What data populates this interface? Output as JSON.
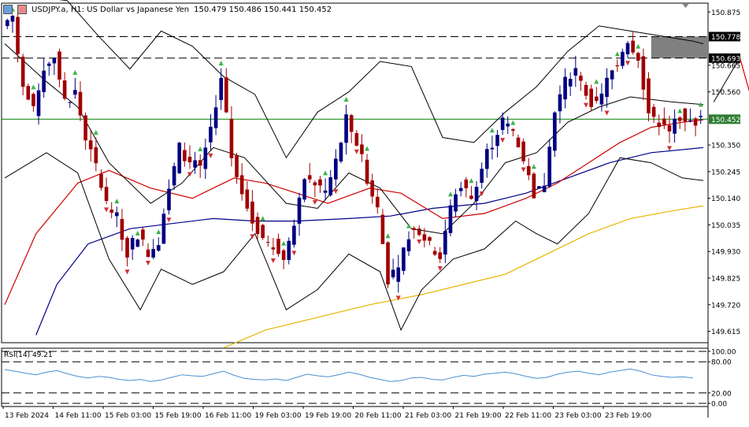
{
  "header": {
    "symbol": "USDJPY.a, H1:  US Dollar vs Japanese Yen",
    "ohlc": "150.479 150.486 150.441 150.452"
  },
  "rsi": {
    "label": "RSI(14) 49.21",
    "value": 49.21,
    "levels": [
      100,
      80,
      20,
      0
    ]
  },
  "price_axis": {
    "ticks": [
      "150.875",
      "150.665",
      "150.560",
      "150.350",
      "150.245",
      "150.140",
      "150.035",
      "149.930",
      "149.825",
      "149.720",
      "149.615"
    ],
    "tick_values": [
      150.875,
      150.665,
      150.56,
      150.35,
      150.245,
      150.14,
      150.035,
      149.93,
      149.825,
      149.72,
      149.615
    ],
    "tags": [
      {
        "label": "150.778",
        "value": 150.778,
        "color": "#000000"
      },
      {
        "label": "150.693",
        "value": 150.693,
        "color": "#000000"
      },
      {
        "label": "150.452",
        "value": 150.452,
        "color": "#2e7d32"
      }
    ]
  },
  "time_axis": [
    "13 Feb 2024",
    "14 Feb 11:00",
    "15 Feb 03:00",
    "15 Feb 19:00",
    "16 Feb 11:00",
    "19 Feb 03:00",
    "19 Feb 19:00",
    "20 Feb 11:00",
    "21 Feb 03:00",
    "21 Feb 19:00",
    "22 Feb 11:00",
    "23 Feb 03:00",
    "23 Feb 19:00"
  ],
  "colors": {
    "bull_candle": "#000080",
    "bear_candle": "#a00000",
    "bollinger": "#000000",
    "ma_fast": "#d00000",
    "ma_mid": "#00008b",
    "ma_slow": "#e8b400",
    "rsi_line": "#4a8fd0",
    "resistance_zone": "#808080",
    "current_price_line": "#008000",
    "arrow_up": "#3cb44b",
    "arrow_down": "#d03030",
    "projection_up": "#000000",
    "projection_down": "#e00000"
  },
  "chart_data": {
    "type": "candlestick",
    "title": "USDJPY.a, H1:  US Dollar vs Japanese Yen",
    "ylim": [
      149.57,
      150.91
    ],
    "y_ticks": [
      150.875,
      150.665,
      150.56,
      150.35,
      150.245,
      150.14,
      150.035,
      149.93,
      149.825,
      149.72,
      149.615
    ],
    "x_ticks": [
      "13 Feb 2024",
      "14 Feb 11:00",
      "15 Feb 03:00",
      "15 Feb 19:00",
      "16 Feb 11:00",
      "19 Feb 03:00",
      "19 Feb 19:00",
      "20 Feb 11:00",
      "21 Feb 03:00",
      "21 Feb 19:00",
      "22 Feb 11:00",
      "23 Feb 03:00",
      "23 Feb 19:00"
    ],
    "price_path": [
      [
        0,
        150.82
      ],
      [
        2,
        150.86
      ],
      [
        4,
        150.58
      ],
      [
        6,
        150.48
      ],
      [
        8,
        150.66
      ],
      [
        10,
        150.7
      ],
      [
        12,
        150.52
      ],
      [
        14,
        150.56
      ],
      [
        16,
        150.38
      ],
      [
        18,
        150.26
      ],
      [
        20,
        150.12
      ],
      [
        22,
        150.06
      ],
      [
        24,
        149.93
      ],
      [
        26,
        150.0
      ],
      [
        28,
        149.92
      ],
      [
        30,
        149.98
      ],
      [
        32,
        150.18
      ],
      [
        34,
        150.34
      ],
      [
        36,
        150.28
      ],
      [
        38,
        150.26
      ],
      [
        40,
        150.42
      ],
      [
        42,
        150.62
      ],
      [
        44,
        150.3
      ],
      [
        46,
        150.18
      ],
      [
        48,
        150.05
      ],
      [
        50,
        149.98
      ],
      [
        52,
        149.96
      ],
      [
        54,
        149.92
      ],
      [
        56,
        150.02
      ],
      [
        58,
        150.22
      ],
      [
        60,
        150.2
      ],
      [
        62,
        150.16
      ],
      [
        64,
        150.28
      ],
      [
        66,
        150.45
      ],
      [
        68,
        150.36
      ],
      [
        70,
        150.22
      ],
      [
        72,
        150.1
      ],
      [
        74,
        149.82
      ],
      [
        76,
        149.85
      ],
      [
        78,
        150.0
      ],
      [
        80,
        150.02
      ],
      [
        82,
        149.95
      ],
      [
        84,
        149.92
      ],
      [
        86,
        150.1
      ],
      [
        88,
        150.2
      ],
      [
        90,
        150.14
      ],
      [
        92,
        150.28
      ],
      [
        94,
        150.36
      ],
      [
        96,
        150.44
      ],
      [
        98,
        150.4
      ],
      [
        100,
        150.28
      ],
      [
        102,
        150.16
      ],
      [
        104,
        150.2
      ],
      [
        106,
        150.48
      ],
      [
        108,
        150.6
      ],
      [
        110,
        150.64
      ],
      [
        112,
        150.55
      ],
      [
        114,
        150.5
      ],
      [
        116,
        150.6
      ],
      [
        118,
        150.68
      ],
      [
        120,
        150.77
      ],
      [
        122,
        150.7
      ],
      [
        124,
        150.48
      ],
      [
        126,
        150.44
      ],
      [
        128,
        150.4
      ],
      [
        130,
        150.47
      ],
      [
        132,
        150.44
      ],
      [
        134,
        150.45
      ]
    ],
    "bollinger_mid": [
      [
        0,
        150.75
      ],
      [
        8,
        150.6
      ],
      [
        14,
        150.5
      ],
      [
        20,
        150.28
      ],
      [
        28,
        150.12
      ],
      [
        34,
        150.2
      ],
      [
        40,
        150.34
      ],
      [
        46,
        150.3
      ],
      [
        54,
        150.12
      ],
      [
        60,
        150.1
      ],
      [
        66,
        150.24
      ],
      [
        72,
        150.18
      ],
      [
        78,
        150.02
      ],
      [
        84,
        150.0
      ],
      [
        90,
        150.12
      ],
      [
        96,
        150.28
      ],
      [
        102,
        150.32
      ],
      [
        108,
        150.44
      ],
      [
        114,
        150.5
      ],
      [
        120,
        150.54
      ],
      [
        128,
        150.52
      ],
      [
        134,
        150.51
      ]
    ],
    "bollinger_upper": [
      [
        0,
        150.95
      ],
      [
        12,
        150.92
      ],
      [
        18,
        150.78
      ],
      [
        24,
        150.65
      ],
      [
        30,
        150.8
      ],
      [
        36,
        150.74
      ],
      [
        42,
        150.62
      ],
      [
        48,
        150.55
      ],
      [
        54,
        150.3
      ],
      [
        60,
        150.48
      ],
      [
        66,
        150.56
      ],
      [
        72,
        150.68
      ],
      [
        78,
        150.66
      ],
      [
        84,
        150.38
      ],
      [
        90,
        150.36
      ],
      [
        96,
        150.48
      ],
      [
        102,
        150.58
      ],
      [
        108,
        150.72
      ],
      [
        114,
        150.82
      ],
      [
        120,
        150.8
      ],
      [
        126,
        150.78
      ],
      [
        132,
        150.76
      ],
      [
        134,
        150.75
      ]
    ],
    "bollinger_lower": [
      [
        0,
        150.22
      ],
      [
        8,
        150.32
      ],
      [
        14,
        150.24
      ],
      [
        20,
        149.9
      ],
      [
        26,
        149.7
      ],
      [
        30,
        149.86
      ],
      [
        36,
        149.8
      ],
      [
        42,
        149.85
      ],
      [
        48,
        150.0
      ],
      [
        54,
        149.7
      ],
      [
        60,
        149.78
      ],
      [
        66,
        149.92
      ],
      [
        72,
        149.85
      ],
      [
        76,
        149.62
      ],
      [
        80,
        149.78
      ],
      [
        86,
        149.9
      ],
      [
        92,
        149.94
      ],
      [
        98,
        150.05
      ],
      [
        102,
        150.0
      ],
      [
        106,
        149.96
      ],
      [
        112,
        150.08
      ],
      [
        118,
        150.3
      ],
      [
        124,
        150.28
      ],
      [
        130,
        150.22
      ],
      [
        134,
        150.21
      ]
    ],
    "ma_fast": [
      [
        0,
        149.72
      ],
      [
        6,
        150.0
      ],
      [
        14,
        150.2
      ],
      [
        20,
        150.25
      ],
      [
        28,
        150.18
      ],
      [
        36,
        150.14
      ],
      [
        44,
        150.22
      ],
      [
        50,
        150.2
      ],
      [
        56,
        150.16
      ],
      [
        62,
        150.12
      ],
      [
        70,
        150.18
      ],
      [
        76,
        150.16
      ],
      [
        84,
        150.06
      ],
      [
        92,
        150.08
      ],
      [
        100,
        150.14
      ],
      [
        106,
        150.2
      ],
      [
        112,
        150.28
      ],
      [
        118,
        150.36
      ],
      [
        124,
        150.42
      ],
      [
        130,
        150.44
      ],
      [
        134,
        150.45
      ]
    ],
    "ma_mid": [
      [
        6,
        149.6
      ],
      [
        10,
        149.8
      ],
      [
        16,
        149.96
      ],
      [
        24,
        150.02
      ],
      [
        32,
        150.04
      ],
      [
        40,
        150.06
      ],
      [
        48,
        150.05
      ],
      [
        56,
        150.05
      ],
      [
        66,
        150.06
      ],
      [
        74,
        150.07
      ],
      [
        82,
        150.1
      ],
      [
        92,
        150.12
      ],
      [
        100,
        150.16
      ],
      [
        108,
        150.22
      ],
      [
        116,
        150.28
      ],
      [
        124,
        150.32
      ],
      [
        134,
        150.34
      ]
    ],
    "ma_slow": [
      [
        42,
        149.55
      ],
      [
        50,
        149.62
      ],
      [
        60,
        149.67
      ],
      [
        70,
        149.72
      ],
      [
        80,
        149.76
      ],
      [
        88,
        149.8
      ],
      [
        96,
        149.84
      ],
      [
        104,
        149.92
      ],
      [
        112,
        150.0
      ],
      [
        120,
        150.06
      ],
      [
        128,
        150.09
      ],
      [
        134,
        150.11
      ]
    ],
    "resistance_zone": [
      150.693,
      150.778
    ],
    "current_price": 150.452,
    "horizontal_levels": [
      150.778,
      150.693,
      150.452
    ],
    "projection": [
      [
        136,
        150.52
      ],
      [
        141,
        150.695
      ],
      [
        147,
        150.26
      ]
    ],
    "rsi_values": [
      65,
      62,
      58,
      55,
      60,
      63,
      57,
      52,
      49,
      52,
      50,
      46,
      44,
      46,
      42,
      45,
      50,
      55,
      53,
      52,
      57,
      62,
      54,
      48,
      46,
      45,
      47,
      44,
      50,
      56,
      53,
      51,
      55,
      60,
      56,
      50,
      46,
      42,
      44,
      49,
      50,
      46,
      45,
      50,
      54,
      52,
      56,
      58,
      60,
      57,
      52,
      48,
      50,
      56,
      60,
      62,
      58,
      55,
      60,
      63,
      66,
      62,
      55,
      52,
      50,
      51,
      49
    ]
  }
}
